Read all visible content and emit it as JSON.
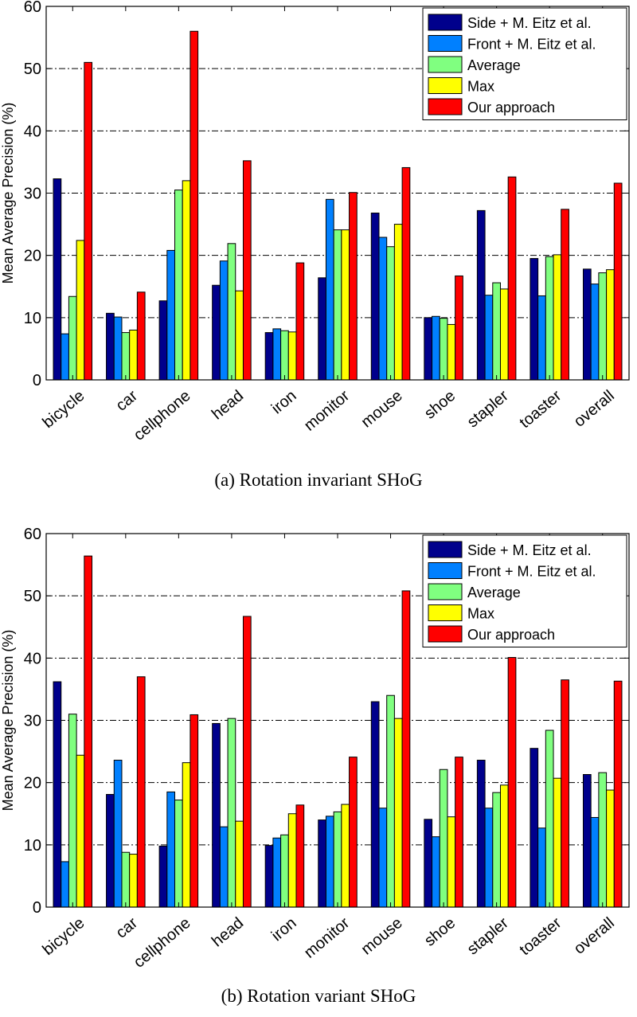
{
  "chart_data": [
    {
      "type": "bar",
      "title": "",
      "caption": "(a)  Rotation invariant SHoG",
      "xlabel": "",
      "ylabel": "Mean Average Precision (%)",
      "ylim": [
        0,
        60
      ],
      "yticks": [
        0,
        10,
        20,
        30,
        40,
        50,
        60
      ],
      "grid": true,
      "legend_position": "top-right",
      "categories": [
        "bicycle",
        "car",
        "cellphone",
        "head",
        "iron",
        "monitor",
        "mouse",
        "shoe",
        "stapler",
        "toaster",
        "overall"
      ],
      "series": [
        {
          "name": "Side + M. Eitz et al.",
          "color": "#00008c",
          "values": [
            32.3,
            10.7,
            12.7,
            15.2,
            7.6,
            16.4,
            26.8,
            10.0,
            27.2,
            19.5,
            17.8
          ]
        },
        {
          "name": "Front + M. Eitz et al.",
          "color": "#0080ff",
          "values": [
            7.4,
            10.1,
            20.8,
            19.1,
            8.2,
            29.0,
            22.9,
            10.2,
            13.6,
            13.5,
            15.4
          ]
        },
        {
          "name": "Average",
          "color": "#80ff80",
          "values": [
            13.4,
            7.6,
            30.5,
            21.9,
            7.9,
            24.1,
            21.4,
            9.9,
            15.6,
            19.8,
            17.2
          ]
        },
        {
          "name": "Max",
          "color": "#ffff00",
          "values": [
            22.4,
            8.0,
            32.0,
            14.3,
            7.7,
            24.1,
            25.0,
            8.9,
            14.6,
            20.1,
            17.7
          ]
        },
        {
          "name": "Our approach",
          "color": "#ff0000",
          "values": [
            51.0,
            14.1,
            56.0,
            35.2,
            18.8,
            30.1,
            34.1,
            16.7,
            32.6,
            27.4,
            31.6
          ]
        }
      ]
    },
    {
      "type": "bar",
      "title": "",
      "caption": "(b)  Rotation variant SHoG",
      "xlabel": "",
      "ylabel": "Mean Average Precision (%)",
      "ylim": [
        0,
        60
      ],
      "yticks": [
        0,
        10,
        20,
        30,
        40,
        50,
        60
      ],
      "grid": true,
      "legend_position": "top-right",
      "categories": [
        "bicycle",
        "car",
        "cellphone",
        "head",
        "iron",
        "monitor",
        "mouse",
        "shoe",
        "stapler",
        "toaster",
        "overall"
      ],
      "series": [
        {
          "name": "Side + M. Eitz et al.",
          "color": "#00008c",
          "values": [
            36.2,
            18.1,
            9.8,
            29.5,
            9.9,
            14.0,
            33.0,
            14.1,
            23.6,
            25.5,
            21.3
          ]
        },
        {
          "name": "Front + M. Eitz et al.",
          "color": "#0080ff",
          "values": [
            7.3,
            23.6,
            18.5,
            12.9,
            11.1,
            14.6,
            15.9,
            11.3,
            15.9,
            12.7,
            14.4
          ]
        },
        {
          "name": "Average",
          "color": "#80ff80",
          "values": [
            31.0,
            8.8,
            17.2,
            30.3,
            11.6,
            15.3,
            34.0,
            22.1,
            18.4,
            28.4,
            21.6
          ]
        },
        {
          "name": "Max",
          "color": "#ffff00",
          "values": [
            24.4,
            8.5,
            23.2,
            13.8,
            15.0,
            16.5,
            30.3,
            14.5,
            19.6,
            20.7,
            18.8
          ]
        },
        {
          "name": "Our approach",
          "color": "#ff0000",
          "values": [
            56.4,
            37.0,
            30.9,
            46.7,
            16.4,
            24.1,
            50.8,
            24.1,
            40.1,
            36.5,
            36.3
          ]
        }
      ]
    }
  ]
}
